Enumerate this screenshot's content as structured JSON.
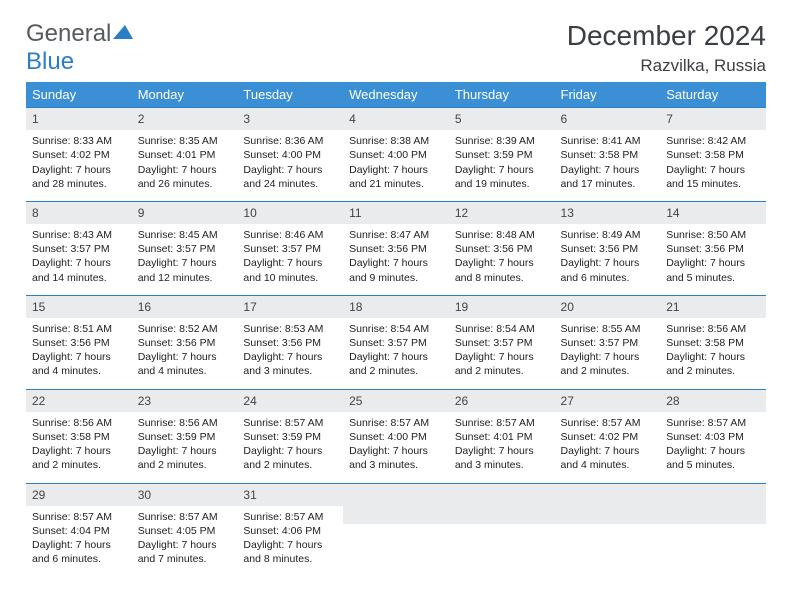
{
  "logo": {
    "word1": "General",
    "word2": "Blue"
  },
  "title": "December 2024",
  "location": "Razvilka, Russia",
  "colors": {
    "header_bg": "#3b8fd4",
    "header_text": "#ffffff",
    "cell_border": "#2a7fc4",
    "daynum_bg": "#e9ebec",
    "text": "#222222",
    "logo_general": "#555a5f",
    "logo_blue": "#2a7fc4"
  },
  "weekdays": [
    "Sunday",
    "Monday",
    "Tuesday",
    "Wednesday",
    "Thursday",
    "Friday",
    "Saturday"
  ],
  "weeks": [
    [
      {
        "n": "1",
        "sr": "8:33 AM",
        "ss": "4:02 PM",
        "dl": "7 hours and 28 minutes."
      },
      {
        "n": "2",
        "sr": "8:35 AM",
        "ss": "4:01 PM",
        "dl": "7 hours and 26 minutes."
      },
      {
        "n": "3",
        "sr": "8:36 AM",
        "ss": "4:00 PM",
        "dl": "7 hours and 24 minutes."
      },
      {
        "n": "4",
        "sr": "8:38 AM",
        "ss": "4:00 PM",
        "dl": "7 hours and 21 minutes."
      },
      {
        "n": "5",
        "sr": "8:39 AM",
        "ss": "3:59 PM",
        "dl": "7 hours and 19 minutes."
      },
      {
        "n": "6",
        "sr": "8:41 AM",
        "ss": "3:58 PM",
        "dl": "7 hours and 17 minutes."
      },
      {
        "n": "7",
        "sr": "8:42 AM",
        "ss": "3:58 PM",
        "dl": "7 hours and 15 minutes."
      }
    ],
    [
      {
        "n": "8",
        "sr": "8:43 AM",
        "ss": "3:57 PM",
        "dl": "7 hours and 14 minutes."
      },
      {
        "n": "9",
        "sr": "8:45 AM",
        "ss": "3:57 PM",
        "dl": "7 hours and 12 minutes."
      },
      {
        "n": "10",
        "sr": "8:46 AM",
        "ss": "3:57 PM",
        "dl": "7 hours and 10 minutes."
      },
      {
        "n": "11",
        "sr": "8:47 AM",
        "ss": "3:56 PM",
        "dl": "7 hours and 9 minutes."
      },
      {
        "n": "12",
        "sr": "8:48 AM",
        "ss": "3:56 PM",
        "dl": "7 hours and 8 minutes."
      },
      {
        "n": "13",
        "sr": "8:49 AM",
        "ss": "3:56 PM",
        "dl": "7 hours and 6 minutes."
      },
      {
        "n": "14",
        "sr": "8:50 AM",
        "ss": "3:56 PM",
        "dl": "7 hours and 5 minutes."
      }
    ],
    [
      {
        "n": "15",
        "sr": "8:51 AM",
        "ss": "3:56 PM",
        "dl": "7 hours and 4 minutes."
      },
      {
        "n": "16",
        "sr": "8:52 AM",
        "ss": "3:56 PM",
        "dl": "7 hours and 4 minutes."
      },
      {
        "n": "17",
        "sr": "8:53 AM",
        "ss": "3:56 PM",
        "dl": "7 hours and 3 minutes."
      },
      {
        "n": "18",
        "sr": "8:54 AM",
        "ss": "3:57 PM",
        "dl": "7 hours and 2 minutes."
      },
      {
        "n": "19",
        "sr": "8:54 AM",
        "ss": "3:57 PM",
        "dl": "7 hours and 2 minutes."
      },
      {
        "n": "20",
        "sr": "8:55 AM",
        "ss": "3:57 PM",
        "dl": "7 hours and 2 minutes."
      },
      {
        "n": "21",
        "sr": "8:56 AM",
        "ss": "3:58 PM",
        "dl": "7 hours and 2 minutes."
      }
    ],
    [
      {
        "n": "22",
        "sr": "8:56 AM",
        "ss": "3:58 PM",
        "dl": "7 hours and 2 minutes."
      },
      {
        "n": "23",
        "sr": "8:56 AM",
        "ss": "3:59 PM",
        "dl": "7 hours and 2 minutes."
      },
      {
        "n": "24",
        "sr": "8:57 AM",
        "ss": "3:59 PM",
        "dl": "7 hours and 2 minutes."
      },
      {
        "n": "25",
        "sr": "8:57 AM",
        "ss": "4:00 PM",
        "dl": "7 hours and 3 minutes."
      },
      {
        "n": "26",
        "sr": "8:57 AM",
        "ss": "4:01 PM",
        "dl": "7 hours and 3 minutes."
      },
      {
        "n": "27",
        "sr": "8:57 AM",
        "ss": "4:02 PM",
        "dl": "7 hours and 4 minutes."
      },
      {
        "n": "28",
        "sr": "8:57 AM",
        "ss": "4:03 PM",
        "dl": "7 hours and 5 minutes."
      }
    ],
    [
      {
        "n": "29",
        "sr": "8:57 AM",
        "ss": "4:04 PM",
        "dl": "7 hours and 6 minutes."
      },
      {
        "n": "30",
        "sr": "8:57 AM",
        "ss": "4:05 PM",
        "dl": "7 hours and 7 minutes."
      },
      {
        "n": "31",
        "sr": "8:57 AM",
        "ss": "4:06 PM",
        "dl": "7 hours and 8 minutes."
      },
      null,
      null,
      null,
      null
    ]
  ],
  "labels": {
    "sunrise": "Sunrise: ",
    "sunset": "Sunset: ",
    "daylight": "Daylight: "
  }
}
